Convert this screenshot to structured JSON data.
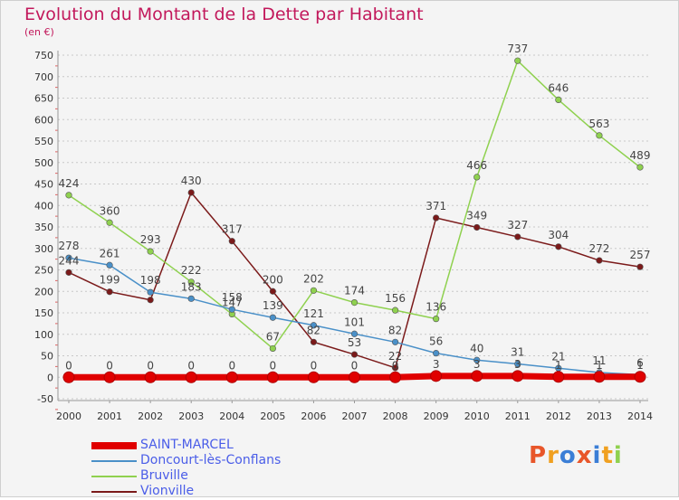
{
  "chart_data": {
    "type": "line",
    "title": "Evolution du Montant de la Dette par Habitant",
    "subtitle": "(en €)",
    "x": [
      "2000",
      "2001",
      "2002",
      "2003",
      "2004",
      "2005",
      "2006",
      "2007",
      "2008",
      "2009",
      "2010",
      "2011",
      "2012",
      "2013",
      "2014"
    ],
    "y_ticks": [
      "-50",
      "0",
      "50",
      "100",
      "150",
      "200",
      "250",
      "300",
      "350",
      "400",
      "450",
      "500",
      "550",
      "600",
      "650",
      "700",
      "750"
    ],
    "ylim": [
      -50,
      750
    ],
    "grid": "horizontal dotted",
    "legend_position": "bottom-left",
    "series": [
      {
        "name": "SAINT-MARCEL",
        "color": "#e00000",
        "values": [
          0,
          0,
          0,
          0,
          0,
          0,
          0,
          0,
          0,
          3,
          3,
          3,
          1,
          1,
          1
        ],
        "labels": [
          "0",
          "0",
          "0",
          "0",
          "0",
          "0",
          "0",
          "0",
          "0",
          "3",
          "3",
          "3",
          "1",
          "1",
          "1"
        ]
      },
      {
        "name": "Doncourt-lès-Conflans",
        "color": "#4a90c8",
        "values": [
          278,
          261,
          198,
          183,
          158,
          139,
          121,
          101,
          82,
          56,
          40,
          31,
          21,
          11,
          6
        ],
        "labels": [
          "278",
          "261",
          "198",
          "183",
          "158",
          "139",
          "121",
          "101",
          "82",
          "56",
          "40",
          "31",
          "21",
          "11",
          "6"
        ]
      },
      {
        "name": "Bruville",
        "color": "#8fd14f",
        "values": [
          424,
          360,
          293,
          222,
          147,
          67,
          202,
          174,
          156,
          136,
          466,
          737,
          646,
          563,
          489
        ],
        "labels": [
          "424",
          "360",
          "293",
          "222",
          "147",
          "67",
          "202",
          "174",
          "156",
          "136",
          "466",
          "737",
          "646",
          "563",
          "489"
        ]
      },
      {
        "name": "Vionville",
        "color": "#7b1a1a",
        "values": [
          244,
          199,
          180,
          430,
          317,
          200,
          82,
          53,
          22,
          371,
          349,
          327,
          304,
          272,
          257
        ],
        "labels": [
          "244",
          "199",
          "",
          "430",
          "317",
          "200",
          "82",
          "53",
          "22",
          "371",
          "349",
          "327",
          "304",
          "272",
          "257"
        ]
      }
    ]
  },
  "branding": {
    "logo_text": "Proxiti",
    "logo_colors": [
      "#e8562a",
      "#f0a020",
      "#3b7ed6",
      "#e8562a",
      "#3b7ed6",
      "#f0a020",
      "#8fd14f"
    ]
  }
}
